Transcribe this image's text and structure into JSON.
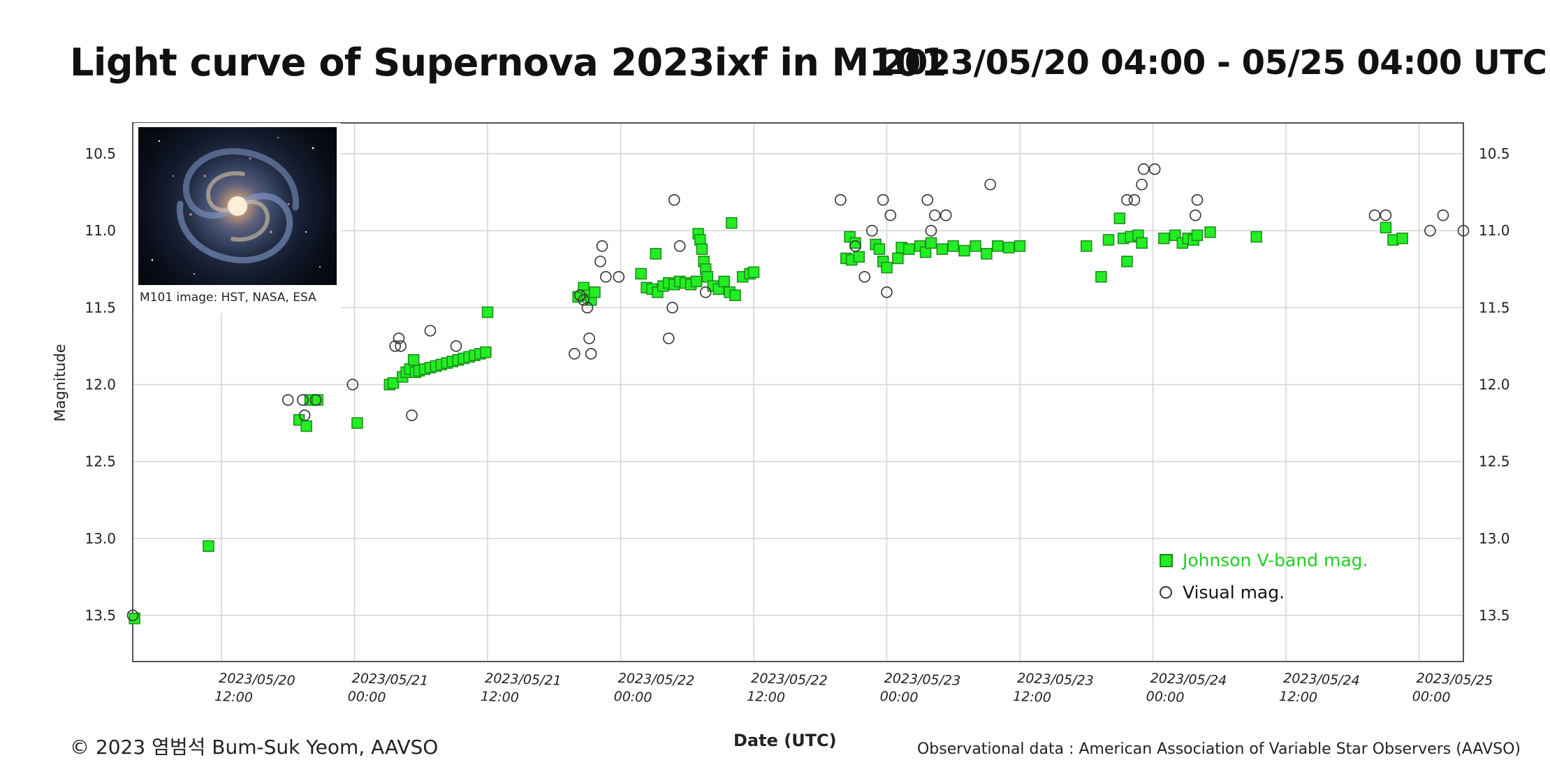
{
  "header": {
    "title": "Light curve of Supernova 2023ixf in M101",
    "range": "2023/05/20 04:00 - 05/25 04:00 UTC"
  },
  "inset": {
    "caption": "M101 image: HST, NASA, ESA"
  },
  "footer": {
    "credit": "© 2023 염범석 Bum-Suk Yeom, AAVSO",
    "source": "Observational data : American Association of Variable Star Observers (AAVSO)"
  },
  "colors": {
    "vband_fill": "#22ee22",
    "vband_edge": "#1a8a1a",
    "visual_edge": "#333333",
    "grid": "#d4d4d4",
    "axis": "#555555",
    "legend_vband_text": "#22cc22"
  },
  "chart_data": {
    "type": "scatter",
    "xlabel": "Date (UTC)",
    "ylabel": "Magnitude",
    "x_range": [
      "2023/05/20 04:00",
      "2023/05/25 04:00"
    ],
    "ylim": [
      10.3,
      13.8
    ],
    "y_inverted": true,
    "grid": true,
    "legend_position": "bottom-right",
    "y_ticks": [
      10.5,
      11.0,
      11.5,
      12.0,
      12.5,
      13.0,
      13.5
    ],
    "y_tick_labels": [
      "10.5",
      "11.0",
      "11.5",
      "12.0",
      "12.5",
      "13.0",
      "13.5"
    ],
    "x_ticks": [
      {
        "x": "2023/05/20 12:00",
        "date": "2023/05/20",
        "time": "12:00"
      },
      {
        "x": "2023/05/21 00:00",
        "date": "2023/05/21",
        "time": "00:00"
      },
      {
        "x": "2023/05/21 12:00",
        "date": "2023/05/21",
        "time": "12:00"
      },
      {
        "x": "2023/05/22 00:00",
        "date": "2023/05/22",
        "time": "00:00"
      },
      {
        "x": "2023/05/22 12:00",
        "date": "2023/05/22",
        "time": "12:00"
      },
      {
        "x": "2023/05/23 00:00",
        "date": "2023/05/23",
        "time": "00:00"
      },
      {
        "x": "2023/05/23 12:00",
        "date": "2023/05/23",
        "time": "12:00"
      },
      {
        "x": "2023/05/24 00:00",
        "date": "2023/05/24",
        "time": "00:00"
      },
      {
        "x": "2023/05/24 12:00",
        "date": "2023/05/24",
        "time": "12:00"
      },
      {
        "x": "2023/05/25 00:00",
        "date": "2023/05/25",
        "time": "00:00"
      }
    ],
    "series": [
      {
        "name": "Johnson V-band mag.",
        "marker": "square",
        "points": [
          [
            "2023/05/20 04:10",
            13.52
          ],
          [
            "2023/05/20 10:50",
            13.05
          ],
          [
            "2023/05/20 19:00",
            12.23
          ],
          [
            "2023/05/20 19:40",
            12.27
          ],
          [
            "2023/05/20 20:00",
            12.1
          ],
          [
            "2023/05/20 20:40",
            12.1
          ],
          [
            "2023/05/21 00:15",
            12.25
          ],
          [
            "2023/05/21 03:10",
            12.0
          ],
          [
            "2023/05/21 03:30",
            11.99
          ],
          [
            "2023/05/21 04:20",
            11.95
          ],
          [
            "2023/05/21 04:40",
            11.92
          ],
          [
            "2023/05/21 05:00",
            11.9
          ],
          [
            "2023/05/21 05:20",
            11.84
          ],
          [
            "2023/05/21 05:30",
            11.92
          ],
          [
            "2023/05/21 05:50",
            11.91
          ],
          [
            "2023/05/21 06:20",
            11.9
          ],
          [
            "2023/05/21 06:50",
            11.89
          ],
          [
            "2023/05/21 07:20",
            11.88
          ],
          [
            "2023/05/21 07:50",
            11.87
          ],
          [
            "2023/05/21 08:20",
            11.86
          ],
          [
            "2023/05/21 08:50",
            11.85
          ],
          [
            "2023/05/21 09:20",
            11.84
          ],
          [
            "2023/05/21 09:50",
            11.83
          ],
          [
            "2023/05/21 10:20",
            11.82
          ],
          [
            "2023/05/21 10:50",
            11.81
          ],
          [
            "2023/05/21 11:20",
            11.8
          ],
          [
            "2023/05/21 11:50",
            11.79
          ],
          [
            "2023/05/21 12:00",
            11.53
          ],
          [
            "2023/05/21 20:10",
            11.43
          ],
          [
            "2023/05/21 20:40",
            11.37
          ],
          [
            "2023/05/21 21:00",
            11.42
          ],
          [
            "2023/05/21 21:20",
            11.45
          ],
          [
            "2023/05/21 21:40",
            11.4
          ],
          [
            "2023/05/22 01:50",
            11.28
          ],
          [
            "2023/05/22 02:20",
            11.37
          ],
          [
            "2023/05/22 02:50",
            11.38
          ],
          [
            "2023/05/22 03:10",
            11.15
          ],
          [
            "2023/05/22 03:20",
            11.4
          ],
          [
            "2023/05/22 03:50",
            11.36
          ],
          [
            "2023/05/22 04:20",
            11.34
          ],
          [
            "2023/05/22 04:50",
            11.35
          ],
          [
            "2023/05/22 05:20",
            11.33
          ],
          [
            "2023/05/22 05:50",
            11.34
          ],
          [
            "2023/05/22 06:20",
            11.35
          ],
          [
            "2023/05/22 06:50",
            11.33
          ],
          [
            "2023/05/22 07:00",
            11.02
          ],
          [
            "2023/05/22 07:10",
            11.06
          ],
          [
            "2023/05/22 07:20",
            11.12
          ],
          [
            "2023/05/22 07:30",
            11.2
          ],
          [
            "2023/05/22 07:40",
            11.25
          ],
          [
            "2023/05/22 07:50",
            11.3
          ],
          [
            "2023/05/22 08:20",
            11.36
          ],
          [
            "2023/05/22 08:50",
            11.38
          ],
          [
            "2023/05/22 09:20",
            11.33
          ],
          [
            "2023/05/22 09:50",
            11.4
          ],
          [
            "2023/05/22 10:00",
            10.95
          ],
          [
            "2023/05/22 10:20",
            11.42
          ],
          [
            "2023/05/22 11:00",
            11.3
          ],
          [
            "2023/05/22 11:40",
            11.28
          ],
          [
            "2023/05/22 12:00",
            11.27
          ],
          [
            "2023/05/22 20:20",
            11.18
          ],
          [
            "2023/05/22 20:40",
            11.04
          ],
          [
            "2023/05/22 20:50",
            11.19
          ],
          [
            "2023/05/22 21:10",
            11.08
          ],
          [
            "2023/05/22 21:30",
            11.17
          ],
          [
            "2023/05/22 23:00",
            11.09
          ],
          [
            "2023/05/22 23:20",
            11.12
          ],
          [
            "2023/05/22 23:40",
            11.2
          ],
          [
            "2023/05/23 00:00",
            11.24
          ],
          [
            "2023/05/23 01:00",
            11.18
          ],
          [
            "2023/05/23 01:20",
            11.11
          ],
          [
            "2023/05/23 02:00",
            11.12
          ],
          [
            "2023/05/23 03:00",
            11.1
          ],
          [
            "2023/05/23 03:30",
            11.14
          ],
          [
            "2023/05/23 04:00",
            11.08
          ],
          [
            "2023/05/23 05:00",
            11.12
          ],
          [
            "2023/05/23 06:00",
            11.1
          ],
          [
            "2023/05/23 07:00",
            11.13
          ],
          [
            "2023/05/23 08:00",
            11.1
          ],
          [
            "2023/05/23 09:00",
            11.15
          ],
          [
            "2023/05/23 10:00",
            11.1
          ],
          [
            "2023/05/23 11:00",
            11.11
          ],
          [
            "2023/05/23 12:00",
            11.1
          ],
          [
            "2023/05/23 18:00",
            11.1
          ],
          [
            "2023/05/23 19:20",
            11.3
          ],
          [
            "2023/05/23 20:00",
            11.06
          ],
          [
            "2023/05/23 21:00",
            10.92
          ],
          [
            "2023/05/23 21:20",
            11.05
          ],
          [
            "2023/05/23 21:40",
            11.2
          ],
          [
            "2023/05/23 22:00",
            11.04
          ],
          [
            "2023/05/23 22:40",
            11.03
          ],
          [
            "2023/05/23 23:00",
            11.08
          ],
          [
            "2023/05/24 01:00",
            11.05
          ],
          [
            "2023/05/24 02:00",
            11.03
          ],
          [
            "2023/05/24 02:40",
            11.08
          ],
          [
            "2023/05/24 03:10",
            11.05
          ],
          [
            "2023/05/24 03:40",
            11.06
          ],
          [
            "2023/05/24 04:00",
            11.03
          ],
          [
            "2023/05/24 05:10",
            11.01
          ],
          [
            "2023/05/24 09:20",
            11.04
          ],
          [
            "2023/05/24 21:00",
            10.98
          ],
          [
            "2023/05/24 21:40",
            11.06
          ],
          [
            "2023/05/24 22:30",
            11.05
          ]
        ]
      },
      {
        "name": "Visual mag.",
        "marker": "circle",
        "points": [
          [
            "2023/05/20 04:00",
            13.5
          ],
          [
            "2023/05/20 18:00",
            12.1
          ],
          [
            "2023/05/20 19:20",
            12.1
          ],
          [
            "2023/05/20 19:30",
            12.2
          ],
          [
            "2023/05/20 20:30",
            12.1
          ],
          [
            "2023/05/20 23:50",
            12.0
          ],
          [
            "2023/05/21 03:40",
            11.75
          ],
          [
            "2023/05/21 04:00",
            11.7
          ],
          [
            "2023/05/21 04:10",
            11.75
          ],
          [
            "2023/05/21 05:10",
            12.2
          ],
          [
            "2023/05/21 06:50",
            11.65
          ],
          [
            "2023/05/21 09:10",
            11.75
          ],
          [
            "2023/05/21 19:50",
            11.8
          ],
          [
            "2023/05/21 20:20",
            11.42
          ],
          [
            "2023/05/21 20:40",
            11.45
          ],
          [
            "2023/05/21 21:00",
            11.5
          ],
          [
            "2023/05/21 21:10",
            11.7
          ],
          [
            "2023/05/21 21:20",
            11.8
          ],
          [
            "2023/05/21 22:10",
            11.2
          ],
          [
            "2023/05/21 22:20",
            11.1
          ],
          [
            "2023/05/21 22:40",
            11.3
          ],
          [
            "2023/05/21 23:50",
            11.3
          ],
          [
            "2023/05/22 04:20",
            11.7
          ],
          [
            "2023/05/22 04:40",
            11.5
          ],
          [
            "2023/05/22 04:50",
            10.8
          ],
          [
            "2023/05/22 05:20",
            11.1
          ],
          [
            "2023/05/22 07:40",
            11.4
          ],
          [
            "2023/05/22 19:50",
            10.8
          ],
          [
            "2023/05/22 21:10",
            11.1
          ],
          [
            "2023/05/22 22:00",
            11.3
          ],
          [
            "2023/05/22 22:40",
            11.0
          ],
          [
            "2023/05/22 23:40",
            10.8
          ],
          [
            "2023/05/23 00:00",
            11.4
          ],
          [
            "2023/05/23 00:20",
            10.9
          ],
          [
            "2023/05/23 03:40",
            10.8
          ],
          [
            "2023/05/23 04:00",
            11.0
          ],
          [
            "2023/05/23 04:20",
            10.9
          ],
          [
            "2023/05/23 05:20",
            10.9
          ],
          [
            "2023/05/23 09:20",
            10.7
          ],
          [
            "2023/05/23 21:40",
            10.8
          ],
          [
            "2023/05/23 22:20",
            10.8
          ],
          [
            "2023/05/23 23:00",
            10.7
          ],
          [
            "2023/05/23 23:10",
            10.6
          ],
          [
            "2023/05/24 00:10",
            10.6
          ],
          [
            "2023/05/24 03:50",
            10.9
          ],
          [
            "2023/05/24 04:00",
            10.8
          ],
          [
            "2023/05/24 20:00",
            10.9
          ],
          [
            "2023/05/24 21:00",
            10.9
          ],
          [
            "2023/05/25 01:00",
            11.0
          ],
          [
            "2023/05/25 02:10",
            10.9
          ],
          [
            "2023/05/25 04:00",
            11.0
          ]
        ]
      }
    ]
  }
}
